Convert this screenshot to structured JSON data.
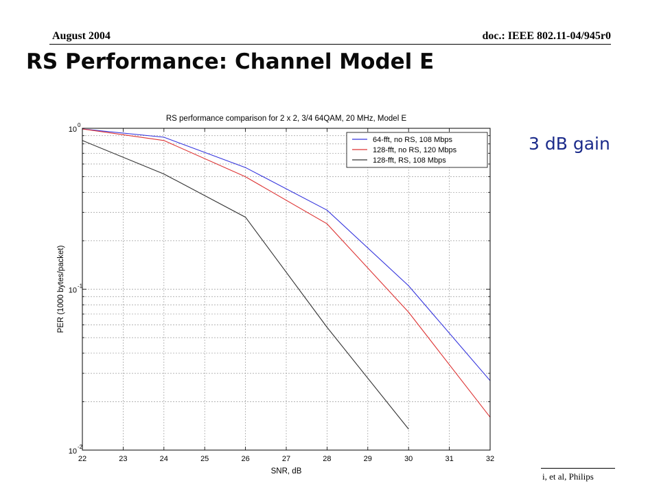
{
  "header": {
    "left": "August 2004",
    "right": "doc.: IEEE 802.11-04/945r0"
  },
  "slide_title": "RS Performance: Channel Model E",
  "annotation": "3 dB gain",
  "footer_right": "i, et al, Philips",
  "chart_data": {
    "type": "line",
    "title": "RS performance comparison for 2 x 2, 3/4 64QAM, 20 MHz, Model E",
    "xlabel": "SNR, dB",
    "ylabel": "PER (1000 bytes/packet)",
    "xlim": [
      22,
      32
    ],
    "ylim": [
      0.01,
      1
    ],
    "yscale": "log",
    "grid": true,
    "legend_position": "top-right",
    "x_ticks": [
      22,
      23,
      24,
      25,
      26,
      27,
      28,
      29,
      30,
      31,
      32
    ],
    "y_ticks": [
      {
        "base": "10",
        "exp": "-2",
        "value": 0.01
      },
      {
        "base": "10",
        "exp": "-1",
        "value": 0.1
      },
      {
        "base": "10",
        "exp": "0",
        "value": 1
      }
    ],
    "series": [
      {
        "name": "64-fft, no RS, 108 Mbps",
        "color": "#3333dd",
        "x": [
          22,
          24,
          26,
          28,
          30,
          32
        ],
        "y": [
          0.99,
          0.88,
          0.57,
          0.31,
          0.105,
          0.027
        ]
      },
      {
        "name": "128-fft, no RS, 120 Mbps",
        "color": "#dd3333",
        "x": [
          22,
          24,
          26,
          28,
          30,
          32
        ],
        "y": [
          0.99,
          0.84,
          0.5,
          0.255,
          0.072,
          0.016
        ]
      },
      {
        "name": "128-fft, RS, 108 Mbps",
        "color": "#333333",
        "x": [
          22,
          24,
          26,
          28,
          30
        ],
        "y": [
          0.84,
          0.52,
          0.28,
          0.058,
          0.0135
        ]
      }
    ]
  }
}
